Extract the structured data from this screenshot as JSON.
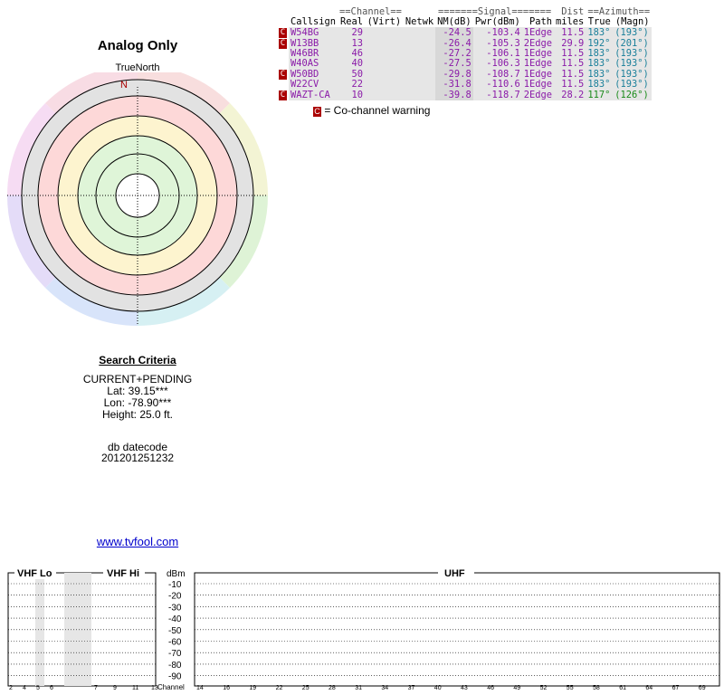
{
  "report": {
    "title": "Analog Only",
    "north_label": "TrueNorth",
    "north_marker": "N",
    "criteria_title": "Search Criteria",
    "criteria": [
      "CURRENT+PENDING",
      "Lat: 39.15***",
      "Lon: -78.90***",
      "Height: 25.0 ft."
    ],
    "datecode_label": "db datecode",
    "datecode": "201201251232",
    "link": "www.tvfool.com"
  },
  "table": {
    "group_headers": {
      "channel": "==Channel==",
      "signal": "=======Signal=======",
      "dist": "Dist",
      "azimuth": "==Azimuth=="
    },
    "headers": [
      "Callsign",
      "Real",
      "(Virt)",
      "Netwk",
      "NM(dB)",
      "Pwr(dBm)",
      "Path",
      "miles",
      "True",
      "(Magn)"
    ],
    "rows": [
      {
        "cc": true,
        "callsign": "W54BG",
        "real": "29",
        "virt": "",
        "netwk": "",
        "nm": "-24.5",
        "pwr": "-103.4",
        "path": "1Edge",
        "dist": "11.5",
        "true_az": "183°",
        "magn_az": "(193°)"
      },
      {
        "cc": true,
        "callsign": "W13BB",
        "real": "13",
        "virt": "",
        "netwk": "",
        "nm": "-26.4",
        "pwr": "-105.3",
        "path": "2Edge",
        "dist": "29.9",
        "true_az": "192°",
        "magn_az": "(201°)"
      },
      {
        "cc": false,
        "callsign": "W46BR",
        "real": "46",
        "virt": "",
        "netwk": "",
        "nm": "-27.2",
        "pwr": "-106.1",
        "path": "1Edge",
        "dist": "11.5",
        "true_az": "183°",
        "magn_az": "(193°)"
      },
      {
        "cc": false,
        "callsign": "W40AS",
        "real": "40",
        "virt": "",
        "netwk": "",
        "nm": "-27.5",
        "pwr": "-106.3",
        "path": "1Edge",
        "dist": "11.5",
        "true_az": "183°",
        "magn_az": "(193°)"
      },
      {
        "cc": true,
        "callsign": "W50BD",
        "real": "50",
        "virt": "",
        "netwk": "",
        "nm": "-29.8",
        "pwr": "-108.7",
        "path": "1Edge",
        "dist": "11.5",
        "true_az": "183°",
        "magn_az": "(193°)"
      },
      {
        "cc": false,
        "callsign": "W22CV",
        "real": "22",
        "virt": "",
        "netwk": "",
        "nm": "-31.8",
        "pwr": "-110.6",
        "path": "1Edge",
        "dist": "11.5",
        "true_az": "183°",
        "magn_az": "(193°)"
      },
      {
        "cc": true,
        "callsign": "WAZT-CA",
        "real": "10",
        "virt": "",
        "netwk": "",
        "nm": "-39.8",
        "pwr": "-118.7",
        "path": "2Edge",
        "dist": "28.2",
        "true_az": "117°",
        "magn_az": "(126°)"
      }
    ],
    "legend_icon": "C",
    "legend_text": "= Co-channel warning"
  },
  "spectrum": {
    "bands": [
      "VHF Lo",
      "VHF Hi",
      "UHF"
    ],
    "dbm_label": "dBm",
    "dbm_ticks": [
      "-10",
      "-20",
      "-30",
      "-40",
      "-50",
      "-60",
      "-70",
      "-80",
      "-90"
    ],
    "channel_label": "Channel",
    "vhflo_ticks": [
      "2",
      "4",
      "5",
      "6"
    ],
    "vhfhi_ticks": [
      "7",
      "9",
      "11",
      "13"
    ],
    "uhf_ticks": [
      "14",
      "16",
      "19",
      "22",
      "25",
      "28",
      "31",
      "34",
      "37",
      "40",
      "43",
      "46",
      "49",
      "52",
      "55",
      "58",
      "61",
      "64",
      "67",
      "69"
    ]
  }
}
